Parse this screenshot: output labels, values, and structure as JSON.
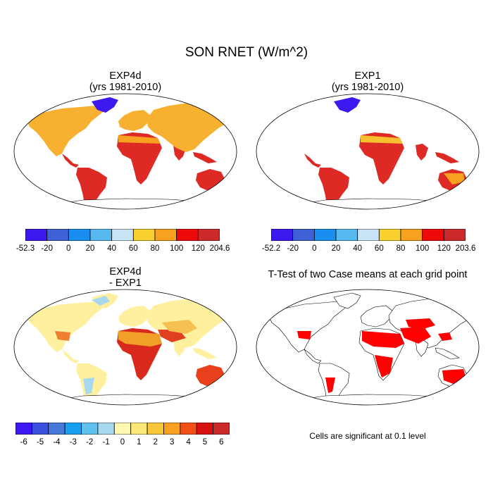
{
  "title": "SON RNET (W/m^2)",
  "panels": {
    "top_left": {
      "title": "EXP4d",
      "subtitle": "(yrs 1981-2010)"
    },
    "top_right": {
      "title": "EXP1",
      "subtitle": "(yrs 1981-2010)"
    },
    "bottom_left": {
      "title": "EXP4d",
      "subtitle": "- EXP1"
    },
    "bottom_right": {
      "title": "T-Test of two Case means at each grid point"
    }
  },
  "colorbars": {
    "top_left": {
      "labels": [
        "-52.3",
        "-20",
        "0",
        "20",
        "40",
        "60",
        "80",
        "100",
        "120",
        "204.6"
      ],
      "colors": [
        "#3d18f0",
        "#4060d8",
        "#1a8ef0",
        "#58b8f0",
        "#c8e4f4",
        "#f8d030",
        "#f8a020",
        "#ee0a0a",
        "#cc2a2a"
      ]
    },
    "top_right": {
      "labels": [
        "-52.2",
        "-20",
        "0",
        "20",
        "40",
        "60",
        "80",
        "100",
        "120",
        "203.6"
      ],
      "colors": [
        "#3d18f0",
        "#4060d8",
        "#1a8ef0",
        "#58b8f0",
        "#c8e4f4",
        "#f8d030",
        "#f8a020",
        "#ee0a0a",
        "#cc2a2a"
      ]
    },
    "bottom_left": {
      "labels": [
        "-6",
        "-5",
        "-4",
        "-3",
        "-2",
        "-1",
        "0",
        "1",
        "2",
        "3",
        "4",
        "5",
        "6"
      ],
      "colors": [
        "#3d18f0",
        "#3c50e0",
        "#4878dc",
        "#18a0f0",
        "#60c0f0",
        "#a8d8f0",
        "#fff8b0",
        "#fce878",
        "#f8c838",
        "#f8a020",
        "#f05018",
        "#d81010",
        "#cc2a2a"
      ]
    }
  },
  "significance_note": "Cells are significant at 0.1 level",
  "legend_colors": {
    "significant": "#ff0000",
    "coast": "#000000"
  }
}
